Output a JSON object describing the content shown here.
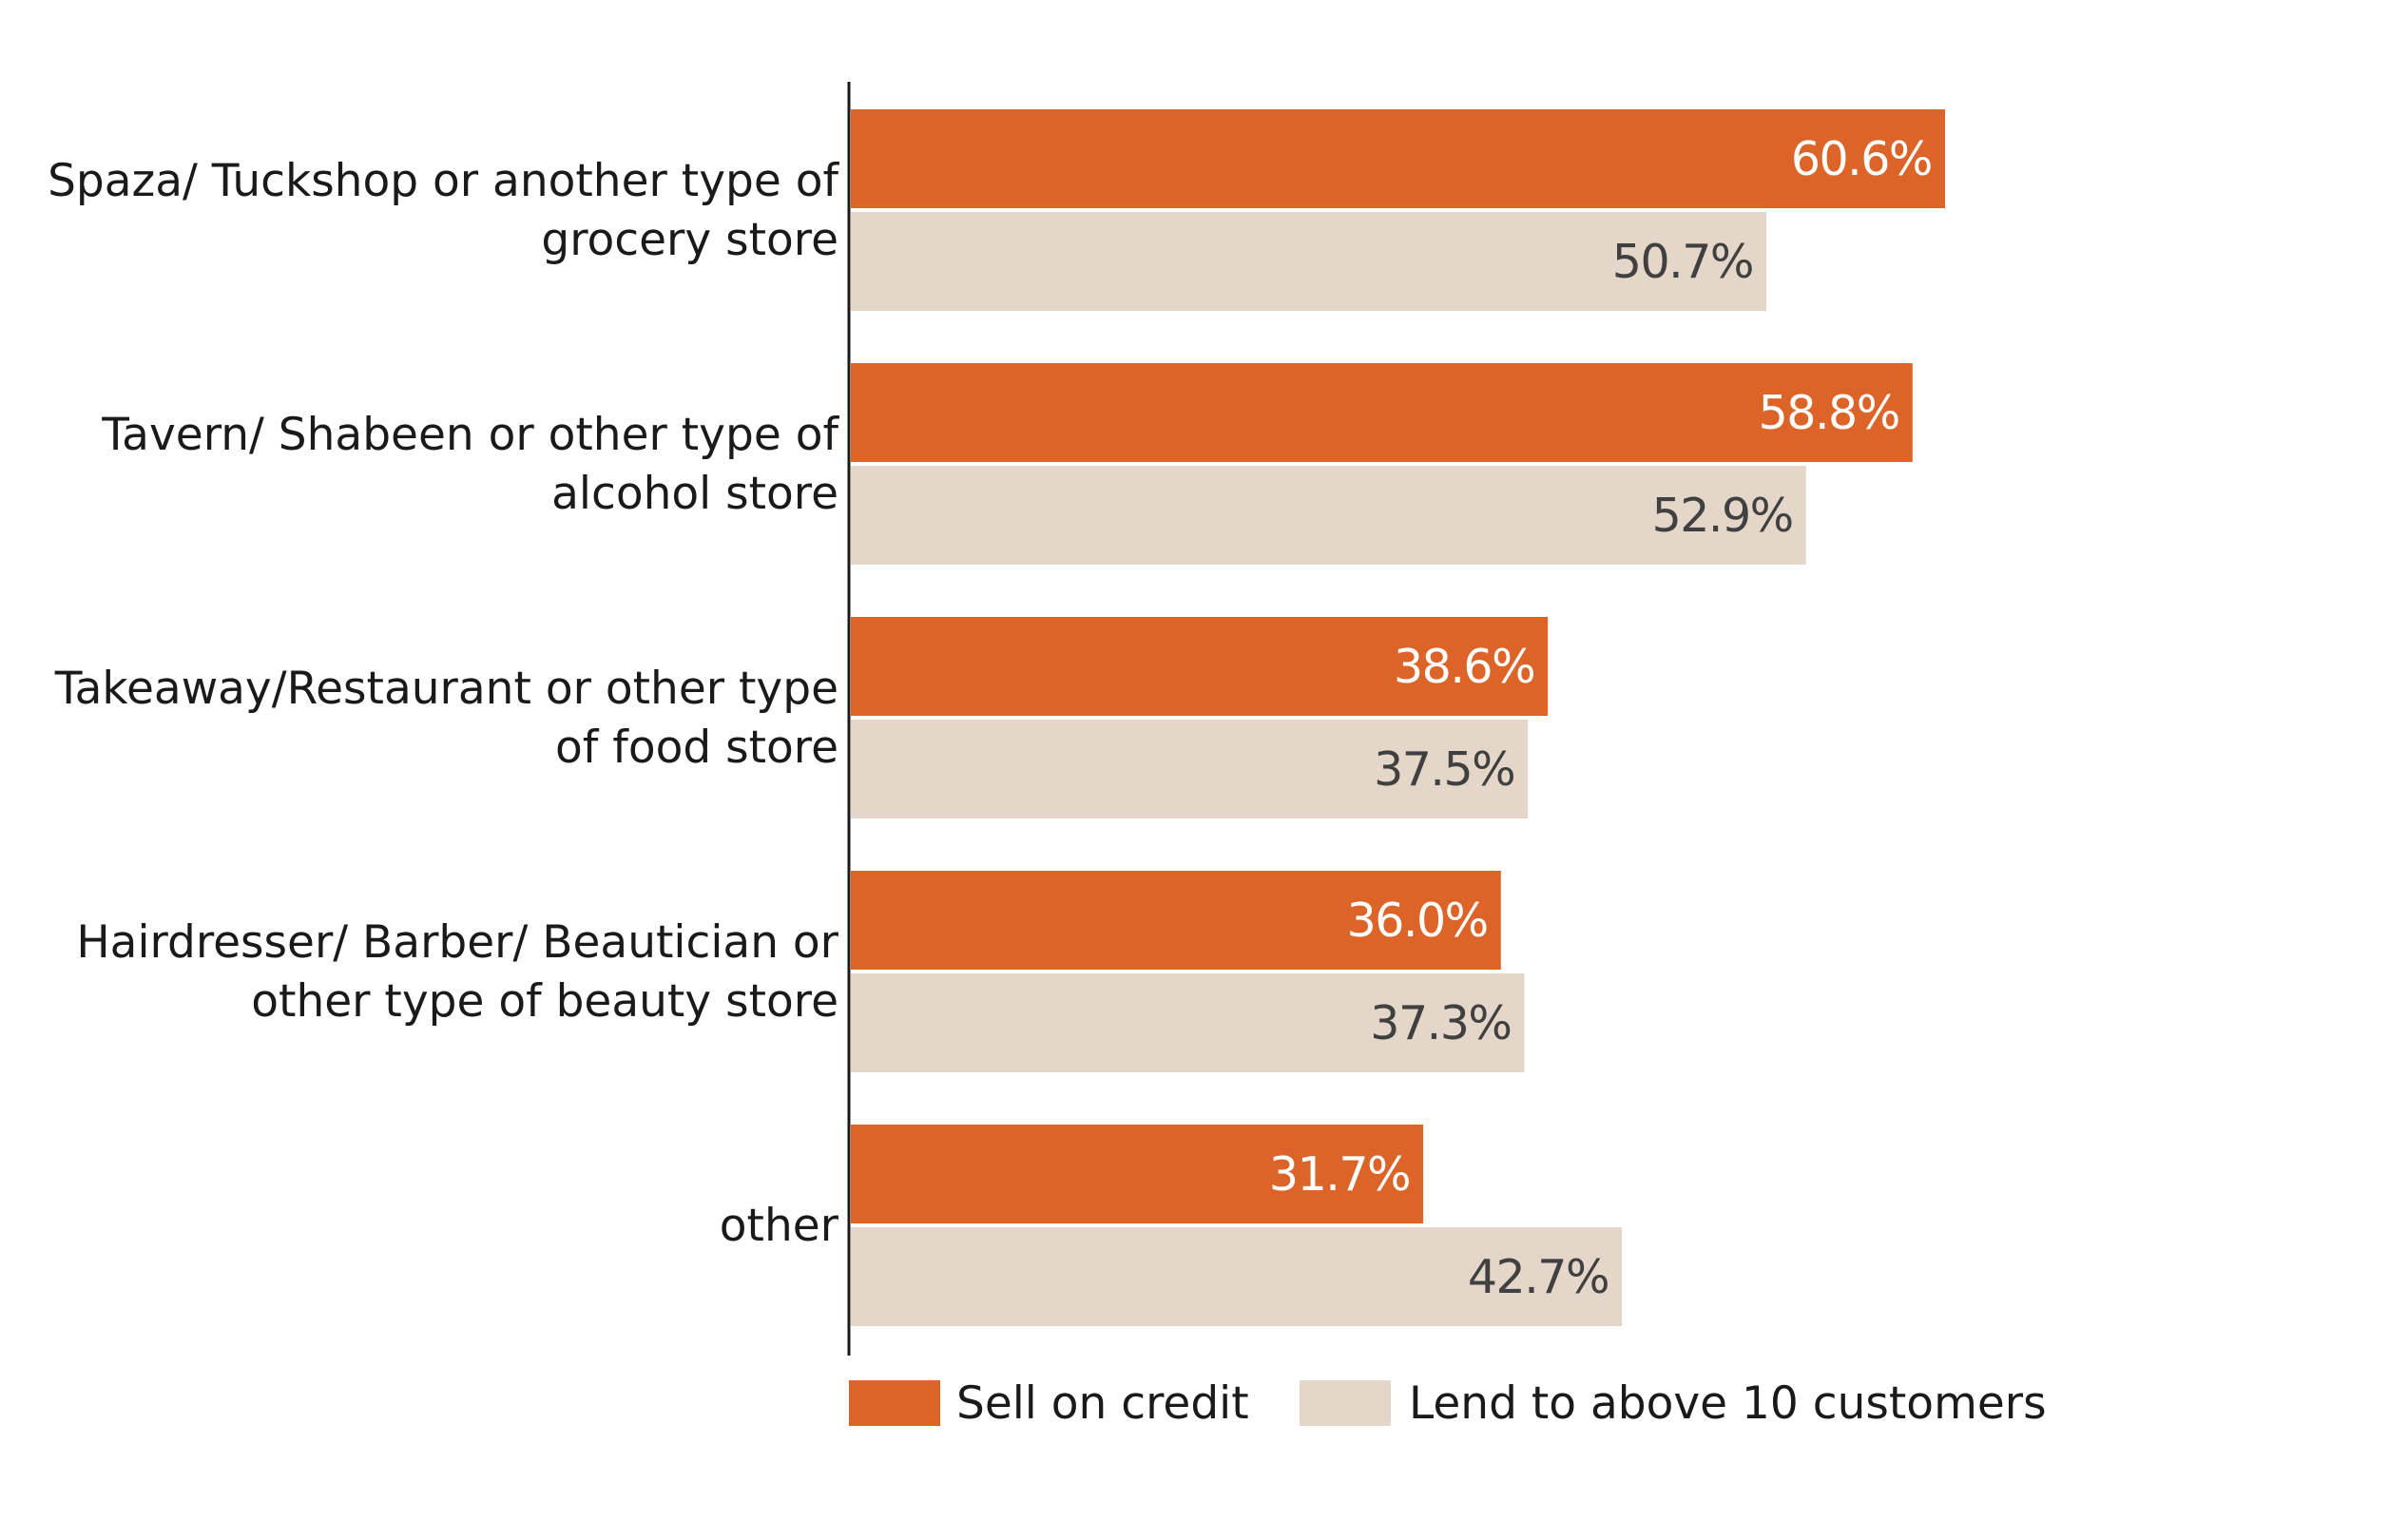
{
  "chart_data": {
    "type": "bar",
    "orientation": "horizontal",
    "title": "",
    "xlabel": "",
    "ylabel": "",
    "xlim": [
      0,
      100
    ],
    "grid": false,
    "legend_position": "bottom",
    "value_suffix": "%",
    "categories": [
      [
        "Spaza/ Tuckshop or another type of",
        "grocery store"
      ],
      [
        "Tavern/ Shabeen or other type of",
        "alcohol store"
      ],
      [
        "Takeaway/Restaurant or other type",
        "of food store"
      ],
      [
        "Hairdresser/ Barber/ Beautician or",
        "other type of beauty store"
      ],
      [
        "other"
      ]
    ],
    "series": [
      {
        "name": "Sell on credit",
        "color": "#dc6428",
        "label_color": "#ffffff",
        "values": [
          60.6,
          58.8,
          38.6,
          36.0,
          31.7
        ]
      },
      {
        "name": "Lend to above 10 customers",
        "color": "#e4d6c8",
        "label_color": "#404040",
        "values": [
          50.7,
          52.9,
          37.5,
          37.3,
          42.7
        ]
      }
    ]
  }
}
